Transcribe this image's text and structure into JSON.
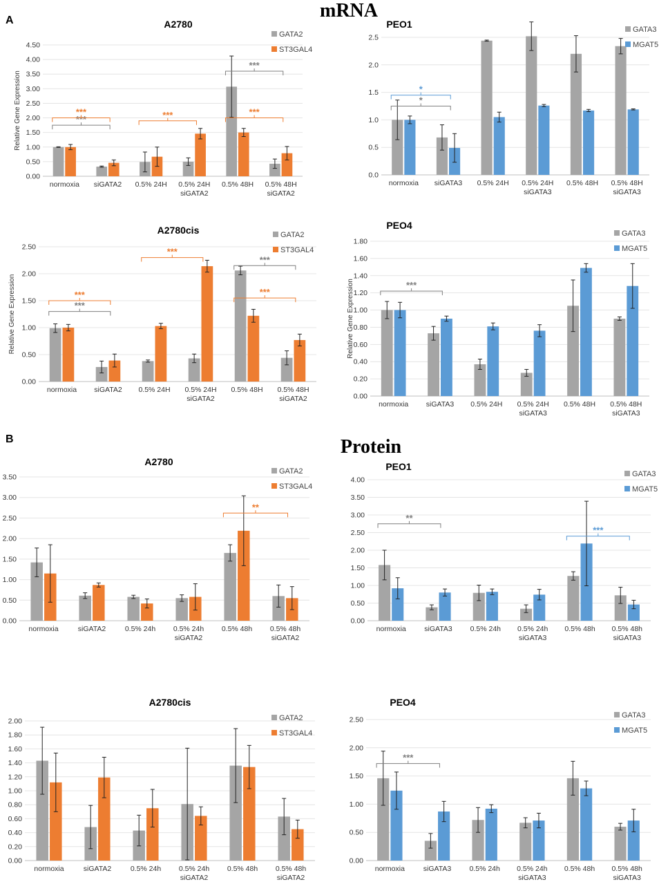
{
  "figure": {
    "section_a": {
      "letter": "A",
      "title": "mRNA"
    },
    "section_b": {
      "letter": "B",
      "title": "Protein"
    }
  },
  "colors": {
    "gray": "#a5a5a5",
    "orange": "#ed7d31",
    "blue": "#5b9bd5",
    "gray_sig": "#7f7f7f"
  },
  "chart_data": [
    {
      "id": "mrna-a2780",
      "type": "bar",
      "title": "A2780",
      "ylabel": "Relative Gene Expression",
      "categories": [
        [
          "normoxia"
        ],
        [
          "siGATA2"
        ],
        [
          "0.5% 24H"
        ],
        [
          "0.5% 24H",
          "siGATA2"
        ],
        [
          "0.5% 48H"
        ],
        [
          "0.5% 48H",
          "siGATA2"
        ]
      ],
      "ylim": [
        0,
        4.5
      ],
      "ytick_step": 0.5,
      "ytick_decimals": 2,
      "series": [
        {
          "name": "GATA2",
          "color": "gray",
          "values": [
            1.0,
            0.33,
            0.49,
            0.5,
            3.07,
            0.43
          ],
          "errors": [
            0.01,
            0.02,
            0.34,
            0.13,
            1.05,
            0.16
          ]
        },
        {
          "name": "ST3GAL4",
          "color": "orange",
          "values": [
            1.0,
            0.46,
            0.67,
            1.46,
            1.5,
            0.79
          ],
          "errors": [
            0.09,
            0.1,
            0.33,
            0.18,
            0.14,
            0.23
          ]
        }
      ],
      "significance": [
        {
          "label": "***",
          "color": "gray",
          "from": 0,
          "to": 1,
          "y": 1.75
        },
        {
          "label": "***",
          "color": "orange",
          "from": 0,
          "to": 1,
          "y": 2.0
        },
        {
          "label": "***",
          "color": "orange",
          "from": 2,
          "to": 3,
          "y": 1.9
        },
        {
          "label": "***",
          "color": "gray",
          "from": 4,
          "to": 5,
          "y": 3.6
        },
        {
          "label": "***",
          "color": "orange",
          "from": 4,
          "to": 5,
          "y": 2.0
        }
      ]
    },
    {
      "id": "mrna-peo1",
      "type": "bar",
      "title": "PEO1",
      "ylabel": "",
      "categories": [
        [
          "normoxia"
        ],
        [
          "siGATA3"
        ],
        [
          "0.5% 24H"
        ],
        [
          "0.5% 24H",
          "siGATA3"
        ],
        [
          "0.5% 48H"
        ],
        [
          "0.5% 48H",
          "siGATA3"
        ]
      ],
      "ylim": [
        0,
        2.5
      ],
      "ytick_step": 0.5,
      "ytick_decimals": 1,
      "series": [
        {
          "name": "GATA3",
          "color": "gray",
          "values": [
            1.0,
            0.68,
            2.44,
            2.52,
            2.2,
            2.34
          ],
          "errors": [
            0.36,
            0.23,
            0.01,
            0.26,
            0.33,
            0.14
          ]
        },
        {
          "name": "MGAT5",
          "color": "blue",
          "values": [
            1.0,
            0.49,
            1.05,
            1.26,
            1.17,
            1.19
          ],
          "errors": [
            0.07,
            0.26,
            0.09,
            0.02,
            0.02,
            0.01
          ]
        }
      ],
      "significance": [
        {
          "label": "*",
          "color": "gray",
          "from": 0,
          "to": 1,
          "y": 1.25
        },
        {
          "label": "*",
          "color": "blue",
          "from": 0,
          "to": 1,
          "y": 1.45
        }
      ]
    },
    {
      "id": "mrna-a2780cis",
      "type": "bar",
      "title": "A2780cis",
      "ylabel": "Relative Gene Expression",
      "categories": [
        [
          "normoxia"
        ],
        [
          "siGATA2"
        ],
        [
          "0.5% 24H"
        ],
        [
          "0.5% 24H",
          "siGATA2"
        ],
        [
          "0.5% 48H"
        ],
        [
          "0.5% 48H",
          "siGATA2"
        ]
      ],
      "ylim": [
        0,
        2.5
      ],
      "ytick_step": 0.5,
      "ytick_decimals": 2,
      "series": [
        {
          "name": "GATA2",
          "color": "gray",
          "values": [
            0.99,
            0.27,
            0.38,
            0.43,
            2.06,
            0.44
          ],
          "errors": [
            0.08,
            0.11,
            0.02,
            0.08,
            0.08,
            0.13
          ]
        },
        {
          "name": "ST3GAL4",
          "color": "orange",
          "values": [
            1.0,
            0.39,
            1.03,
            2.14,
            1.22,
            0.77
          ],
          "errors": [
            0.06,
            0.12,
            0.05,
            0.11,
            0.12,
            0.11
          ]
        }
      ],
      "significance": [
        {
          "label": "***",
          "color": "gray",
          "from": 0,
          "to": 1,
          "y": 1.3
        },
        {
          "label": "***",
          "color": "orange",
          "from": 0,
          "to": 1,
          "y": 1.5
        },
        {
          "label": "***",
          "color": "orange",
          "from": 2,
          "to": 3,
          "y": 2.3
        },
        {
          "label": "***",
          "color": "gray",
          "from": 4,
          "to": 5,
          "y": 2.15
        },
        {
          "label": "***",
          "color": "orange",
          "from": 4,
          "to": 5,
          "y": 1.55
        }
      ]
    },
    {
      "id": "mrna-peo4",
      "type": "bar",
      "title": "PEO4",
      "ylabel": "Relative Gene Expression",
      "categories": [
        [
          "normoxia"
        ],
        [
          "siGATA3"
        ],
        [
          "0.5% 24H"
        ],
        [
          "0.5% 24H",
          "siGATA3"
        ],
        [
          "0.5% 48H"
        ],
        [
          "0.5% 48H",
          "siGATA3"
        ]
      ],
      "ylim": [
        0,
        1.8
      ],
      "ytick_step": 0.2,
      "ytick_decimals": 2,
      "series": [
        {
          "name": "GATA3",
          "color": "gray",
          "values": [
            1.0,
            0.73,
            0.37,
            0.27,
            1.05,
            0.9
          ],
          "errors": [
            0.1,
            0.08,
            0.06,
            0.04,
            0.3,
            0.02
          ]
        },
        {
          "name": "MGAT5",
          "color": "blue",
          "values": [
            1.0,
            0.9,
            0.81,
            0.76,
            1.49,
            1.28
          ],
          "errors": [
            0.09,
            0.03,
            0.04,
            0.07,
            0.05,
            0.26
          ]
        }
      ],
      "significance": [
        {
          "label": "***",
          "color": "gray",
          "from": 0,
          "to": 1,
          "y": 1.22
        }
      ]
    },
    {
      "id": "protein-a2780",
      "type": "bar",
      "title": "A2780",
      "ylabel": "",
      "categories": [
        [
          "normoxia"
        ],
        [
          "siGATA2"
        ],
        [
          "0.5% 24h"
        ],
        [
          "0.5% 24h",
          "siGATA2"
        ],
        [
          "0.5% 48h"
        ],
        [
          "0.5% 48h",
          "siGATA2"
        ]
      ],
      "ylim": [
        0,
        3.5
      ],
      "ytick_step": 0.5,
      "ytick_decimals": 2,
      "series": [
        {
          "name": "GATA2",
          "color": "gray",
          "values": [
            1.42,
            0.61,
            0.58,
            0.55,
            1.65,
            0.6
          ],
          "errors": [
            0.35,
            0.07,
            0.04,
            0.08,
            0.2,
            0.27
          ]
        },
        {
          "name": "ST3GAL4",
          "color": "orange",
          "values": [
            1.15,
            0.87,
            0.42,
            0.58,
            2.19,
            0.55
          ],
          "errors": [
            0.7,
            0.05,
            0.11,
            0.32,
            0.85,
            0.28
          ]
        }
      ],
      "significance": [
        {
          "label": "**",
          "color": "orange",
          "from": 4,
          "to": 5,
          "y": 2.62
        }
      ]
    },
    {
      "id": "protein-peo1",
      "type": "bar",
      "title": "PEO1",
      "ylabel": "",
      "categories": [
        [
          "normoxia"
        ],
        [
          "siGATA3"
        ],
        [
          "0.5% 24h"
        ],
        [
          "0.5% 24h",
          "siGATA3"
        ],
        [
          "0.5% 48h"
        ],
        [
          "0.5% 48h",
          "siGATA3"
        ]
      ],
      "ylim": [
        0,
        4.0
      ],
      "ytick_step": 0.5,
      "ytick_decimals": 2,
      "series": [
        {
          "name": "GATA3",
          "color": "gray",
          "values": [
            1.58,
            0.38,
            0.79,
            0.34,
            1.27,
            0.72
          ],
          "errors": [
            0.42,
            0.07,
            0.22,
            0.11,
            0.12,
            0.23
          ]
        },
        {
          "name": "MGAT5",
          "color": "blue",
          "values": [
            0.92,
            0.8,
            0.82,
            0.74,
            2.19,
            0.46
          ],
          "errors": [
            0.3,
            0.1,
            0.08,
            0.15,
            1.2,
            0.12
          ]
        }
      ],
      "significance": [
        {
          "label": "**",
          "color": "gray",
          "from": 0,
          "to": 1,
          "y": 2.75
        },
        {
          "label": "***",
          "color": "blue",
          "from": 4,
          "to": 5,
          "y": 2.4
        }
      ]
    },
    {
      "id": "protein-a2780cis",
      "type": "bar",
      "title": "A2780cis",
      "ylabel": "",
      "categories": [
        [
          "normoxia"
        ],
        [
          "siGATA2"
        ],
        [
          "0.5% 24h"
        ],
        [
          "0.5% 24h",
          "siGATA2"
        ],
        [
          "0.5% 48h"
        ],
        [
          "0.5% 48h",
          "siGATA2"
        ]
      ],
      "ylim": [
        0,
        2.0
      ],
      "ytick_step": 0.2,
      "ytick_decimals": 2,
      "series": [
        {
          "name": "GATA2",
          "color": "gray",
          "values": [
            1.43,
            0.48,
            0.43,
            0.81,
            1.36,
            0.63
          ],
          "errors": [
            0.48,
            0.31,
            0.22,
            0.8,
            0.53,
            0.26
          ]
        },
        {
          "name": "ST3GAL4",
          "color": "orange",
          "values": [
            1.12,
            1.19,
            0.75,
            0.64,
            1.34,
            0.45
          ],
          "errors": [
            0.42,
            0.29,
            0.27,
            0.13,
            0.31,
            0.13
          ]
        }
      ],
      "significance": []
    },
    {
      "id": "protein-peo4",
      "type": "bar",
      "title": "PEO4",
      "ylabel": "",
      "categories": [
        [
          "normoxia"
        ],
        [
          "siGATA3"
        ],
        [
          "0.5% 24h"
        ],
        [
          "0.5% 24h",
          "siGATA3"
        ],
        [
          "0.5% 48h"
        ],
        [
          "0.5% 48h",
          "siGATA3"
        ]
      ],
      "ylim": [
        0,
        2.5
      ],
      "ytick_step": 0.5,
      "ytick_decimals": 2,
      "series": [
        {
          "name": "GATA3",
          "color": "gray",
          "values": [
            1.46,
            0.35,
            0.72,
            0.67,
            1.46,
            0.6
          ],
          "errors": [
            0.48,
            0.13,
            0.22,
            0.09,
            0.3,
            0.06
          ]
        },
        {
          "name": "MGAT5",
          "color": "blue",
          "values": [
            1.24,
            0.87,
            0.92,
            0.71,
            1.28,
            0.71
          ],
          "errors": [
            0.33,
            0.18,
            0.07,
            0.13,
            0.13,
            0.2
          ]
        }
      ],
      "significance": [
        {
          "label": "***",
          "color": "gray",
          "from": 0,
          "to": 1,
          "y": 1.72
        }
      ]
    }
  ]
}
